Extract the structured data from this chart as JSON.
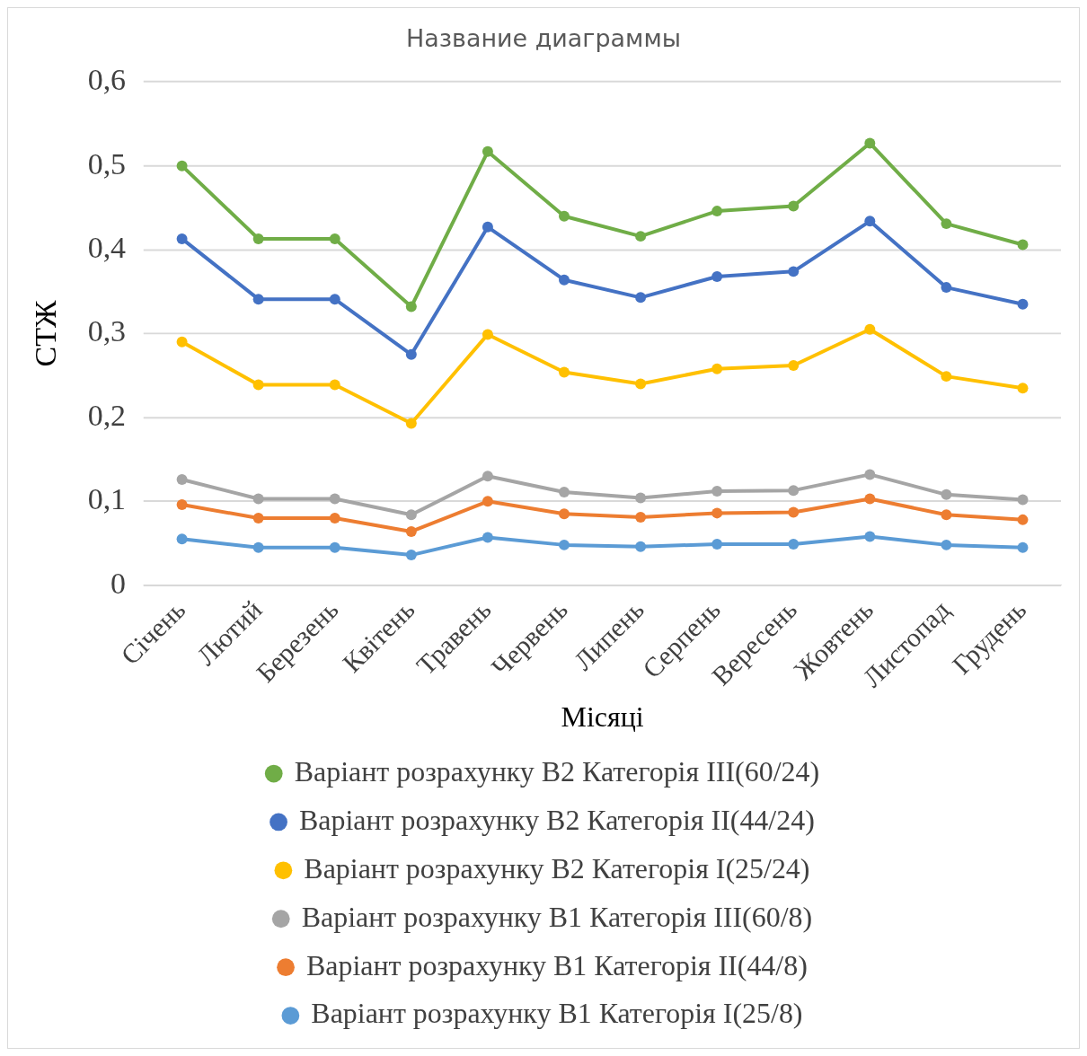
{
  "chart_data": {
    "type": "line",
    "title": "Название диаграммы",
    "xlabel": "Місяці",
    "ylabel": "СТЖ",
    "categories": [
      "Січень",
      "Лютий",
      "Березень",
      "Квітень",
      "Травень",
      "Червень",
      "Липень",
      "Серпень",
      "Вересень",
      "Жовтень",
      "Листопад",
      "Грудень"
    ],
    "series": [
      {
        "name": "Варіант розрахунку В2 Категорія ІІІ(60/24)",
        "color": "#70ad47",
        "values": [
          0.5,
          0.413,
          0.413,
          0.332,
          0.517,
          0.44,
          0.416,
          0.446,
          0.452,
          0.527,
          0.431,
          0.406
        ]
      },
      {
        "name": "Варіант розрахунку В2 Категорія ІІ(44/24)",
        "color": "#4472c4",
        "values": [
          0.413,
          0.341,
          0.341,
          0.275,
          0.427,
          0.364,
          0.343,
          0.368,
          0.374,
          0.434,
          0.355,
          0.335
        ]
      },
      {
        "name": "Варіант розрахунку В2 Категорія І(25/24)",
        "color": "#ffc000",
        "values": [
          0.29,
          0.239,
          0.239,
          0.193,
          0.299,
          0.254,
          0.24,
          0.258,
          0.262,
          0.305,
          0.249,
          0.235
        ]
      },
      {
        "name": "Варіант розрахунку В1 Категорія ІІІ(60/8)",
        "color": "#a5a5a5",
        "values": [
          0.126,
          0.103,
          0.103,
          0.084,
          0.13,
          0.111,
          0.104,
          0.112,
          0.113,
          0.132,
          0.108,
          0.102
        ]
      },
      {
        "name": "Варіант розрахунку В1 Категорія ІІ(44/8)",
        "color": "#ed7d31",
        "values": [
          0.096,
          0.08,
          0.08,
          0.064,
          0.1,
          0.085,
          0.081,
          0.086,
          0.087,
          0.103,
          0.084,
          0.078
        ]
      },
      {
        "name": "Варіант розрахунку В1 Категорія І(25/8)",
        "color": "#5b9bd5",
        "values": [
          0.055,
          0.045,
          0.045,
          0.036,
          0.057,
          0.048,
          0.046,
          0.049,
          0.049,
          0.058,
          0.048,
          0.045
        ]
      }
    ],
    "ylim": [
      0,
      0.6
    ],
    "yticks": [
      {
        "value": 0,
        "label": "0"
      },
      {
        "value": 0.1,
        "label": "0,1"
      },
      {
        "value": 0.2,
        "label": "0,2"
      },
      {
        "value": 0.3,
        "label": "0,3"
      },
      {
        "value": 0.4,
        "label": "0,4"
      },
      {
        "value": 0.5,
        "label": "0,5"
      },
      {
        "value": 0.6,
        "label": "0,6"
      }
    ],
    "grid": "y",
    "legend": "bottom",
    "marker": "circle",
    "line_style": "solid"
  }
}
